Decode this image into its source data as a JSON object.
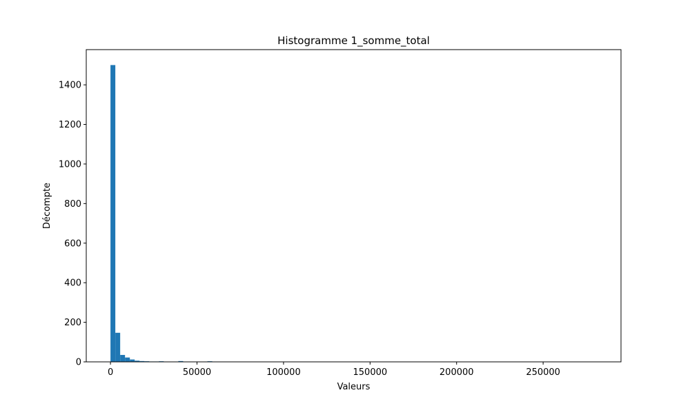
{
  "chart_data": {
    "type": "bar",
    "title": "Histogramme 1_somme_total",
    "xlabel": "Valeurs",
    "ylabel": "Décompte",
    "xlim": [
      -14000,
      295000
    ],
    "ylim": [
      0,
      1578
    ],
    "x_ticks": [
      0,
      50000,
      100000,
      150000,
      200000,
      250000
    ],
    "x_tick_labels": [
      "0",
      "50000",
      "100000",
      "150000",
      "200000",
      "250000"
    ],
    "y_ticks": [
      0,
      200,
      400,
      600,
      800,
      1000,
      1200,
      1400
    ],
    "y_tick_labels": [
      "0",
      "200",
      "400",
      "600",
      "800",
      "1000",
      "1200",
      "1400"
    ],
    "bar_color": "#1f77b4",
    "bin_width": 2800,
    "bins": [
      {
        "x": 0,
        "count": 1500
      },
      {
        "x": 2800,
        "count": 147
      },
      {
        "x": 5600,
        "count": 35
      },
      {
        "x": 8400,
        "count": 22
      },
      {
        "x": 11200,
        "count": 12
      },
      {
        "x": 14000,
        "count": 6
      },
      {
        "x": 16800,
        "count": 4
      },
      {
        "x": 19600,
        "count": 3
      },
      {
        "x": 22400,
        "count": 2
      },
      {
        "x": 25200,
        "count": 2
      },
      {
        "x": 28000,
        "count": 3
      },
      {
        "x": 39200,
        "count": 4
      },
      {
        "x": 56000,
        "count": 3
      }
    ],
    "grid": false,
    "legend": "none"
  }
}
